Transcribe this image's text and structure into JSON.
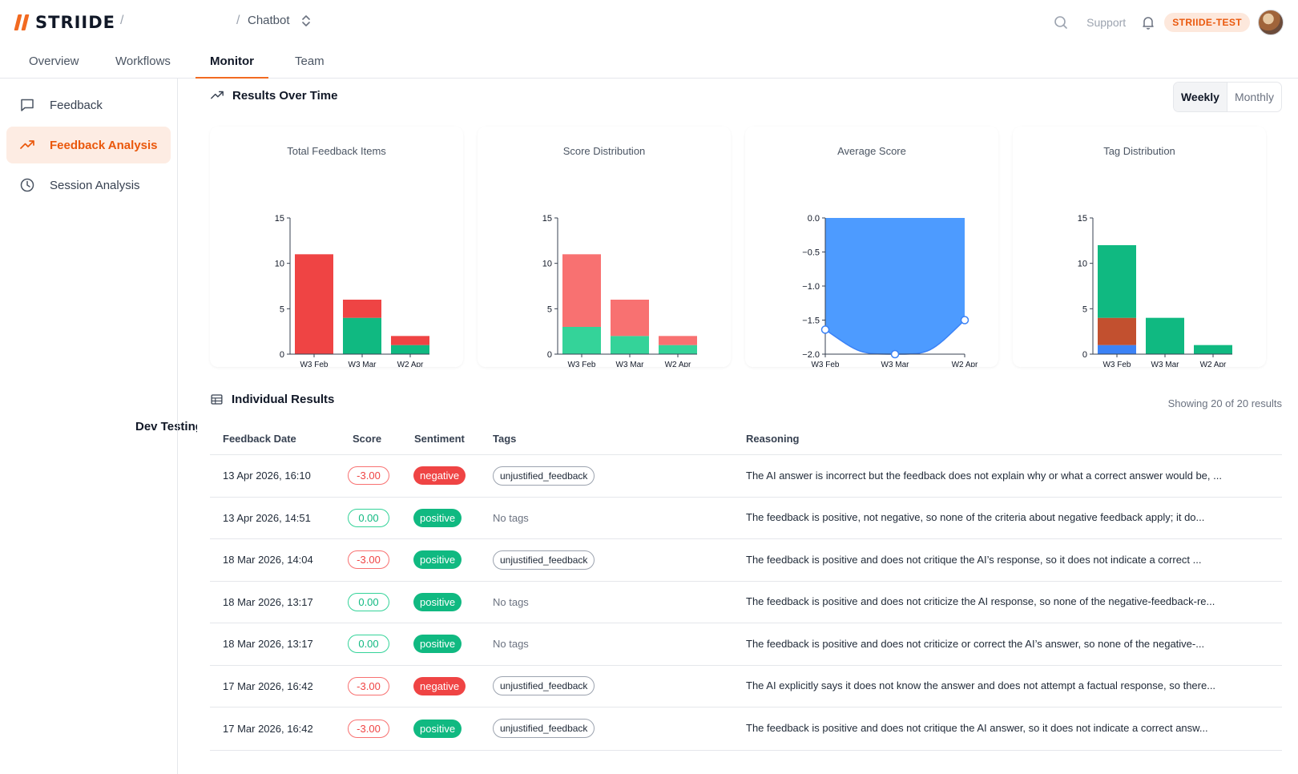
{
  "header": {
    "logo": "STRIIDE",
    "crumb_separator": "/",
    "project": "Dev Testing",
    "bot": "Chatbot",
    "support": "Support",
    "badge": "STRIIDE-TEST",
    "accent": "#f26a21"
  },
  "tabs": [
    "Overview",
    "Workflows",
    "Monitor",
    "Team"
  ],
  "active_tab": "Monitor",
  "sidebar": {
    "items": [
      {
        "label": "Feedback",
        "icon": "message-square-icon"
      },
      {
        "label": "Feedback Analysis",
        "icon": "trending-up-icon"
      },
      {
        "label": "Session Analysis",
        "icon": "clock-icon"
      }
    ],
    "active": "Feedback Analysis"
  },
  "results": {
    "title": "Results Over Time",
    "toggle": [
      "Weekly",
      "Monthly"
    ],
    "selected": "Weekly"
  },
  "charts": {
    "titles": [
      "Total Feedback Items",
      "Score Distribution",
      "Average Score",
      "Tag Distribution"
    ]
  },
  "chart_data": [
    {
      "type": "bar",
      "title": "Total Feedback Items",
      "categories": [
        "W3 Feb",
        "W3 Mar",
        "W2 Apr"
      ],
      "stacked": true,
      "series": [
        {
          "values": [
            0,
            4,
            1
          ],
          "color": "#10b981"
        },
        {
          "values": [
            11,
            2,
            1
          ],
          "color": "#ef4444"
        }
      ],
      "ylim": [
        0,
        15
      ],
      "yticks": [
        0,
        5,
        10,
        15
      ]
    },
    {
      "type": "bar",
      "title": "Score Distribution",
      "categories": [
        "W3 Feb",
        "W3 Mar",
        "W2 Apr"
      ],
      "stacked": true,
      "series": [
        {
          "values": [
            3,
            2,
            1
          ],
          "color": "#34d399"
        },
        {
          "values": [
            8,
            4,
            1
          ],
          "color": "#f87171"
        }
      ],
      "ylim": [
        0,
        15
      ],
      "yticks": [
        0,
        5,
        10,
        15
      ]
    },
    {
      "type": "area",
      "title": "Average Score",
      "categories": [
        "W3 Feb",
        "W3 Mar",
        "W2 Apr"
      ],
      "values": [
        -1.64,
        -2.0,
        -1.5
      ],
      "ylim": [
        -2.0,
        0.0
      ],
      "yticks": [
        "0.0",
        "−0.5",
        "−1.0",
        "−1.5",
        "−2.0"
      ],
      "color": "#4d9bff"
    },
    {
      "type": "bar",
      "title": "Tag Distribution",
      "categories": [
        "W3 Feb",
        "W3 Mar",
        "W2 Apr"
      ],
      "stacked": true,
      "series": [
        {
          "values": [
            1,
            0,
            0
          ],
          "color": "#3b82f6"
        },
        {
          "values": [
            3,
            0,
            0
          ],
          "color": "#c2502f"
        },
        {
          "values": [
            8,
            4,
            1
          ],
          "color": "#10b981"
        }
      ],
      "ylim": [
        0,
        15
      ],
      "yticks": [
        0,
        5,
        10,
        15
      ]
    }
  ],
  "individual": {
    "title": "Individual Results",
    "count_text": "Showing 20 of 20 results",
    "columns": [
      "Feedback Date",
      "Score",
      "Sentiment",
      "Tags",
      "Reasoning"
    ],
    "rows": [
      {
        "date": "13 Apr 2026, 16:10",
        "score": "-3.00",
        "sentiment": "negative",
        "tag": "unjustified_feedback",
        "reasoning": "The AI answer is incorrect but the feedback does not explain why or what a correct answer would be, ..."
      },
      {
        "date": "13 Apr 2026, 14:51",
        "score": "0.00",
        "sentiment": "positive",
        "tag": "No tags",
        "reasoning": "The feedback is positive, not negative, so none of the criteria about negative feedback apply; it do..."
      },
      {
        "date": "18 Mar 2026, 14:04",
        "score": "-3.00",
        "sentiment": "positive",
        "tag": "unjustified_feedback",
        "reasoning": "The feedback is positive and does not critique the AI’s response, so it does not indicate a correct ..."
      },
      {
        "date": "18 Mar 2026, 13:17",
        "score": "0.00",
        "sentiment": "positive",
        "tag": "No tags",
        "reasoning": "The feedback is positive and does not criticize the AI response, so none of the negative-feedback-re..."
      },
      {
        "date": "18 Mar 2026, 13:17",
        "score": "0.00",
        "sentiment": "positive",
        "tag": "No tags",
        "reasoning": "The feedback is positive and does not criticize or correct the AI’s answer, so none of the negative-..."
      },
      {
        "date": "17 Mar 2026, 16:42",
        "score": "-3.00",
        "sentiment": "negative",
        "tag": "unjustified_feedback",
        "reasoning": "The AI explicitly says it does not know the answer and does not attempt a factual response, so there..."
      },
      {
        "date": "17 Mar 2026, 16:42",
        "score": "-3.00",
        "sentiment": "positive",
        "tag": "unjustified_feedback",
        "reasoning": "The feedback is positive and does not critique the AI answer, so it does not indicate a correct answ..."
      }
    ]
  }
}
